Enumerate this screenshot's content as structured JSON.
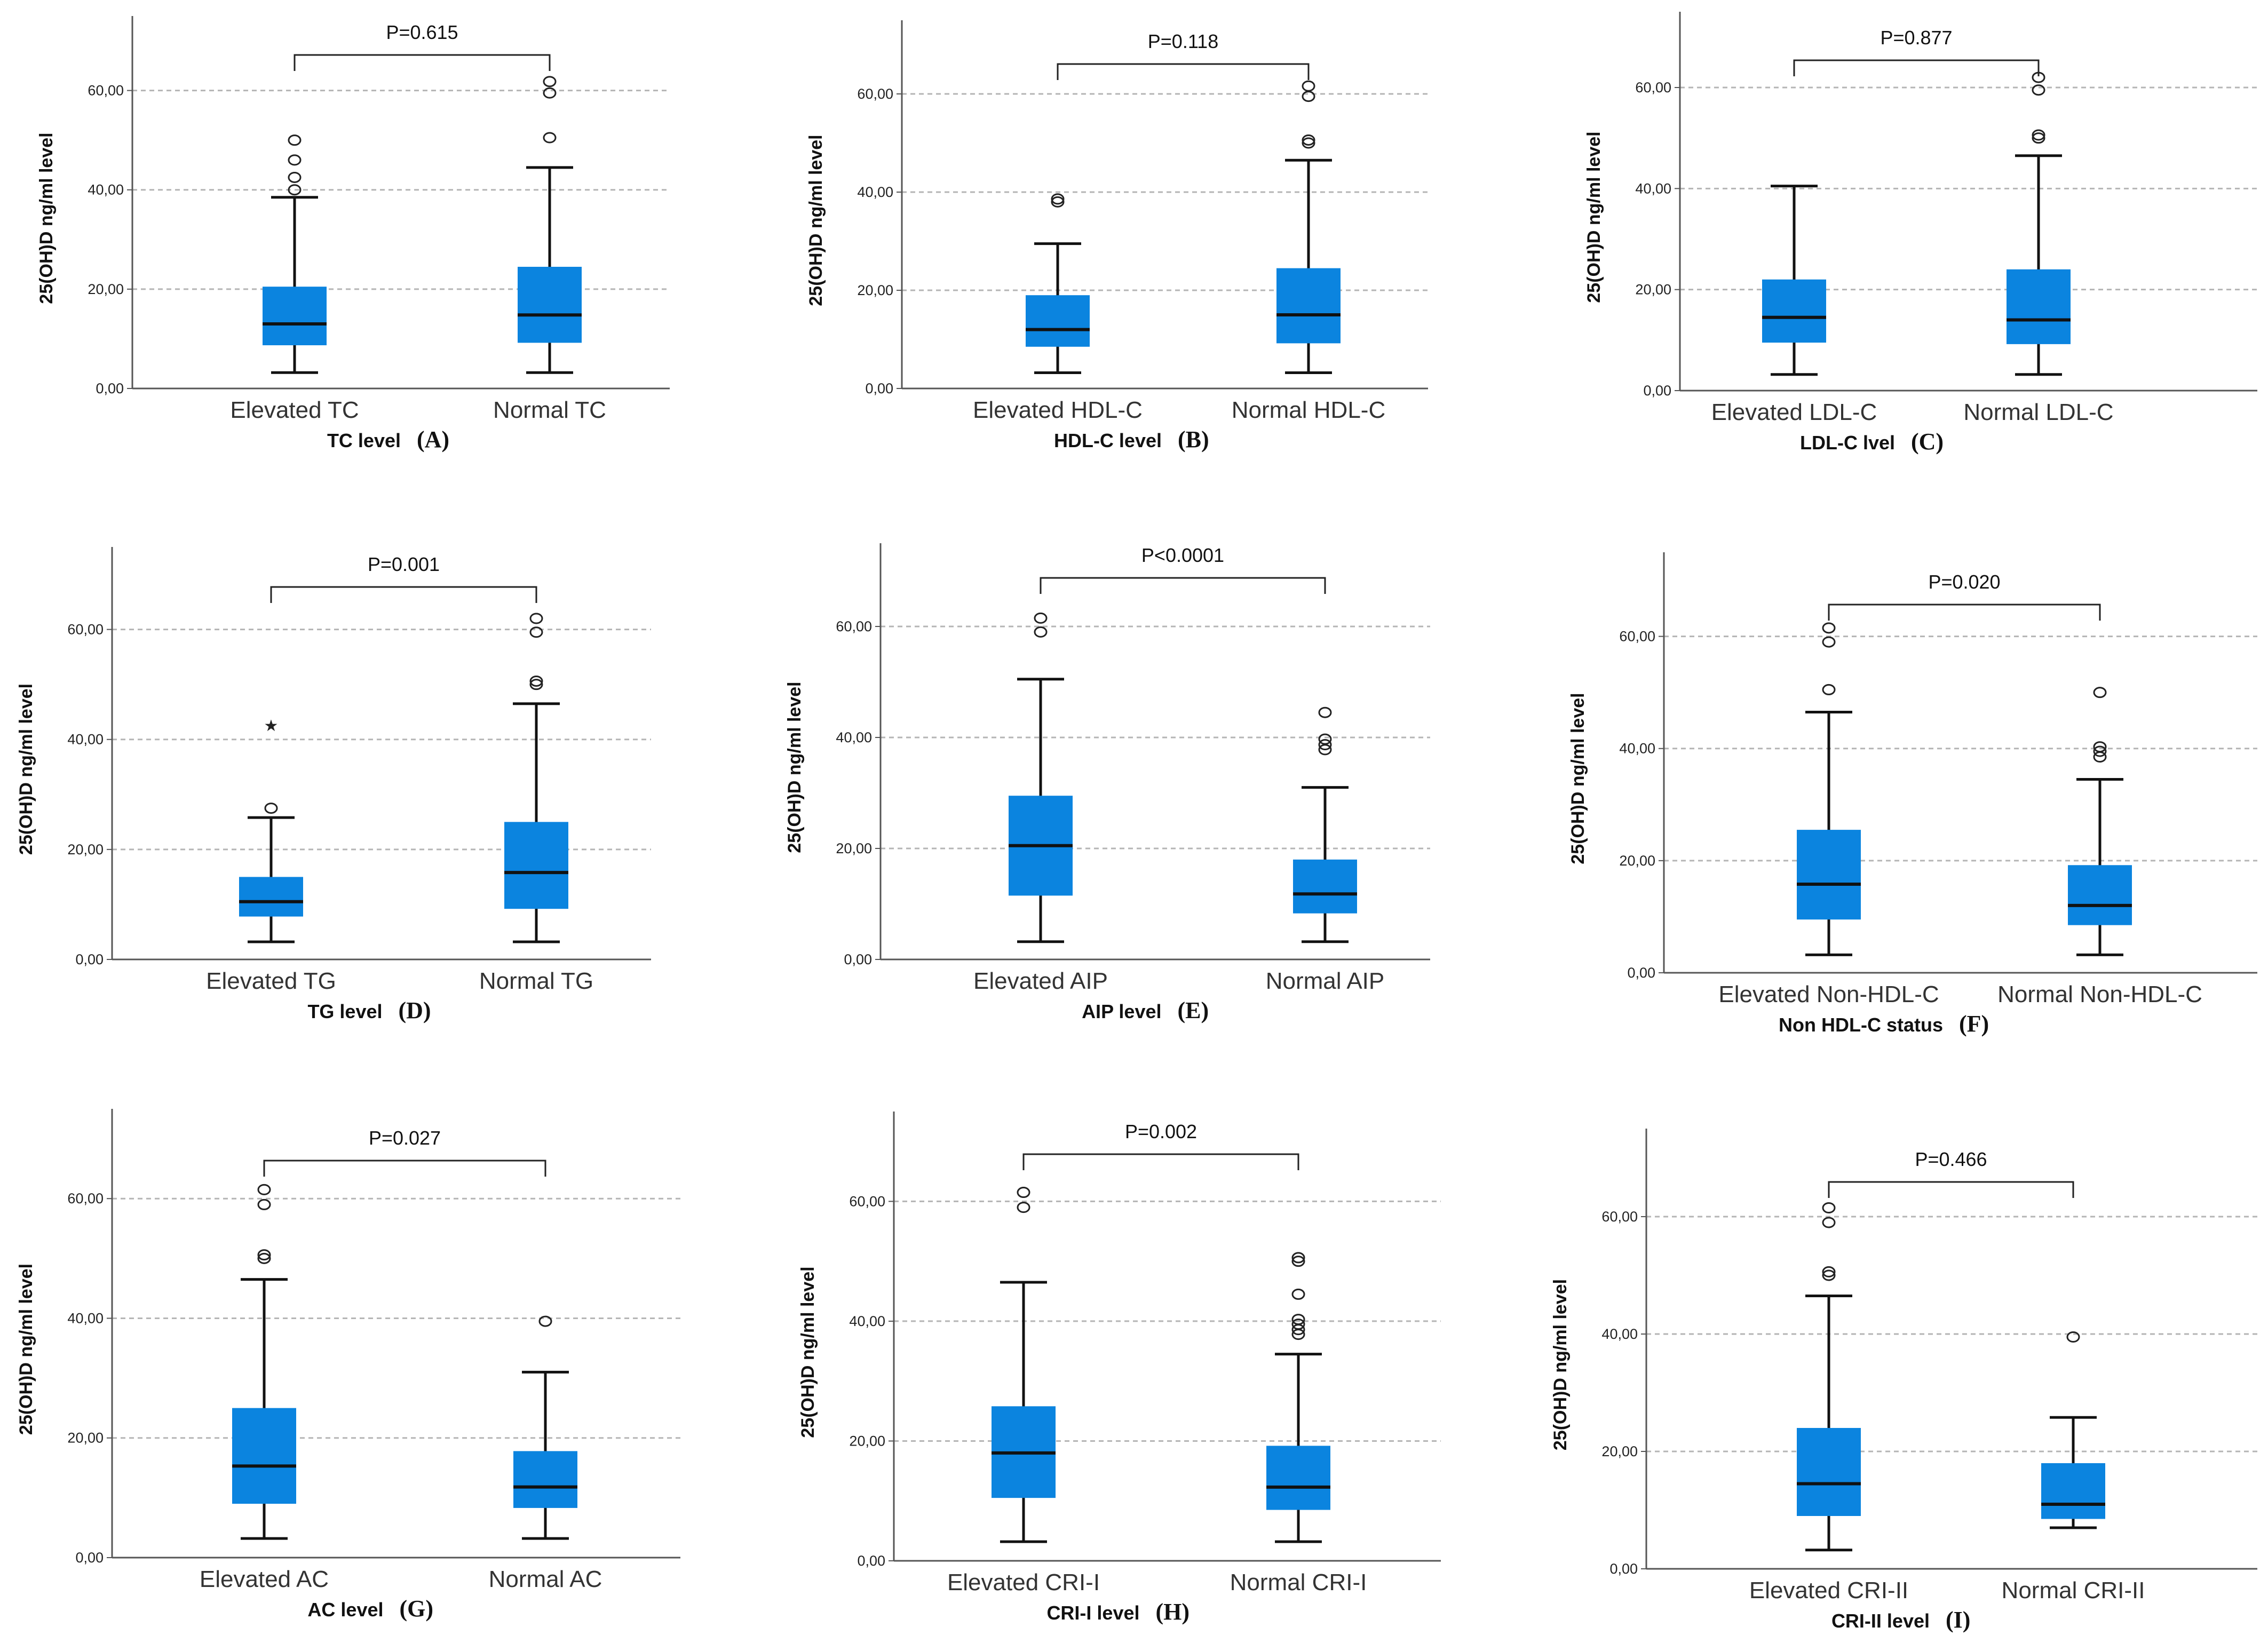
{
  "figure": {
    "ylabel": "25(OH)D ng/ml level",
    "ytick_labels": [
      "0,00",
      "20,00",
      "40,00",
      "60,00"
    ],
    "box_color": "#0b84df",
    "line_color": "#111111",
    "grid_color": "#b5b5b5"
  },
  "chart_data": [
    {
      "type": "box",
      "panel": "(A)",
      "xlabel": "TC level",
      "pvalue": "P=0.615",
      "ylim": [
        0,
        75
      ],
      "groups": [
        {
          "label": "Elevated  TC",
          "whisker_low": 3.2,
          "q1": 8.7,
          "median": 13.0,
          "q3": 20.5,
          "whisker_high": 38.5,
          "outliers": [
            {
              "value": 40.0,
              "symbol": "circle"
            },
            {
              "value": 42.5,
              "symbol": "circle"
            },
            {
              "value": 46.0,
              "symbol": "circle"
            },
            {
              "value": 50.0,
              "symbol": "circle"
            }
          ]
        },
        {
          "label": "Normal  TC",
          "whisker_low": 3.2,
          "q1": 9.2,
          "median": 14.8,
          "q3": 24.5,
          "whisker_high": 44.5,
          "outliers": [
            {
              "value": 50.5,
              "symbol": "circle"
            },
            {
              "value": 59.5,
              "symbol": "circle"
            },
            {
              "value": 61.8,
              "symbol": "circle"
            }
          ]
        }
      ]
    },
    {
      "type": "box",
      "panel": "(B)",
      "xlabel": "HDL-C level",
      "pvalue": "P=0.118",
      "ylim": [
        0,
        75
      ],
      "groups": [
        {
          "label": "Elevated HDL-C",
          "whisker_low": 3.2,
          "q1": 8.5,
          "median": 12.0,
          "q3": 19.0,
          "whisker_high": 29.5,
          "outliers": [
            {
              "value": 38.0,
              "symbol": "circle"
            },
            {
              "value": 38.6,
              "symbol": "circle"
            }
          ]
        },
        {
          "label": "Normal HDL-C",
          "whisker_low": 3.2,
          "q1": 9.2,
          "median": 15.0,
          "q3": 24.5,
          "whisker_high": 46.5,
          "outliers": [
            {
              "value": 50.0,
              "symbol": "circle"
            },
            {
              "value": 50.6,
              "symbol": "circle"
            },
            {
              "value": 59.5,
              "symbol": "circle"
            },
            {
              "value": 61.6,
              "symbol": "circle"
            }
          ]
        }
      ]
    },
    {
      "type": "box",
      "panel": "(C)",
      "xlabel": "LDL-C lvel",
      "pvalue": "P=0.877",
      "ylim": [
        0,
        75
      ],
      "groups": [
        {
          "label": "Elevated LDL-C",
          "whisker_low": 3.2,
          "q1": 9.5,
          "median": 14.5,
          "q3": 22.0,
          "whisker_high": 40.5,
          "outliers": []
        },
        {
          "label": "Normal LDL-C",
          "whisker_low": 3.2,
          "q1": 9.2,
          "median": 14.0,
          "q3": 24.0,
          "whisker_high": 46.5,
          "outliers": [
            {
              "value": 50.0,
              "symbol": "circle"
            },
            {
              "value": 50.6,
              "symbol": "circle"
            },
            {
              "value": 59.5,
              "symbol": "circle"
            },
            {
              "value": 62.0,
              "symbol": "circle"
            }
          ]
        }
      ]
    },
    {
      "type": "box",
      "panel": "(D)",
      "xlabel": "TG level",
      "pvalue": "P=0.001",
      "ylim": [
        0,
        75
      ],
      "groups": [
        {
          "label": "Elevated  TG",
          "whisker_low": 3.2,
          "q1": 7.8,
          "median": 10.5,
          "q3": 15.0,
          "whisker_high": 25.8,
          "outliers": [
            {
              "value": 27.5,
              "symbol": "circle"
            },
            {
              "value": 42.5,
              "symbol": "star"
            }
          ]
        },
        {
          "label": "Normal  TG",
          "whisker_low": 3.2,
          "q1": 9.2,
          "median": 15.8,
          "q3": 25.0,
          "whisker_high": 46.5,
          "outliers": [
            {
              "value": 50.0,
              "symbol": "circle"
            },
            {
              "value": 50.6,
              "symbol": "circle"
            },
            {
              "value": 59.5,
              "symbol": "circle"
            },
            {
              "value": 62.0,
              "symbol": "circle"
            }
          ]
        }
      ]
    },
    {
      "type": "box",
      "panel": "(E)",
      "xlabel": "AIP level",
      "pvalue": "P<0.0001",
      "ylim": [
        0,
        75
      ],
      "groups": [
        {
          "label": "Elevated AIP",
          "whisker_low": 3.2,
          "q1": 11.5,
          "median": 20.5,
          "q3": 29.5,
          "whisker_high": 50.5,
          "outliers": [
            {
              "value": 59.0,
              "symbol": "circle"
            },
            {
              "value": 61.5,
              "symbol": "circle"
            }
          ]
        },
        {
          "label": "Normal AIP",
          "whisker_low": 3.2,
          "q1": 8.3,
          "median": 11.8,
          "q3": 18.0,
          "whisker_high": 31.0,
          "outliers": [
            {
              "value": 37.8,
              "symbol": "circle"
            },
            {
              "value": 38.7,
              "symbol": "circle"
            },
            {
              "value": 39.7,
              "symbol": "circle"
            },
            {
              "value": 44.5,
              "symbol": "circle"
            }
          ]
        }
      ]
    },
    {
      "type": "box",
      "panel": "(F)",
      "xlabel": "Non HDL-C status",
      "pvalue": "P=0.020",
      "ylim": [
        0,
        75
      ],
      "groups": [
        {
          "label": "Elevated Non-HDL-C",
          "whisker_low": 3.2,
          "q1": 9.5,
          "median": 15.8,
          "q3": 25.5,
          "whisker_high": 46.5,
          "outliers": [
            {
              "value": 50.5,
              "symbol": "circle"
            },
            {
              "value": 59.0,
              "symbol": "circle"
            },
            {
              "value": 61.5,
              "symbol": "circle"
            }
          ]
        },
        {
          "label": "Normal Non-HDL-C",
          "whisker_low": 3.2,
          "q1": 8.5,
          "median": 12.0,
          "q3": 19.2,
          "whisker_high": 34.5,
          "outliers": [
            {
              "value": 38.5,
              "symbol": "circle"
            },
            {
              "value": 39.5,
              "symbol": "circle"
            },
            {
              "value": 40.3,
              "symbol": "circle"
            },
            {
              "value": 50.0,
              "symbol": "circle"
            }
          ]
        }
      ]
    },
    {
      "type": "box",
      "panel": "(G)",
      "xlabel": "AC level",
      "pvalue": "P=0.027",
      "ylim": [
        0,
        75
      ],
      "groups": [
        {
          "label": "Elevated  AC",
          "whisker_low": 3.2,
          "q1": 9.0,
          "median": 15.3,
          "q3": 25.0,
          "whisker_high": 46.5,
          "outliers": [
            {
              "value": 50.0,
              "symbol": "circle"
            },
            {
              "value": 50.6,
              "symbol": "circle"
            },
            {
              "value": 59.0,
              "symbol": "circle"
            },
            {
              "value": 61.5,
              "symbol": "circle"
            }
          ]
        },
        {
          "label": "Normal  AC",
          "whisker_low": 3.2,
          "q1": 8.3,
          "median": 11.8,
          "q3": 17.8,
          "whisker_high": 31.0,
          "outliers": [
            {
              "value": 39.5,
              "symbol": "circle"
            }
          ]
        }
      ]
    },
    {
      "type": "box",
      "panel": "(H)",
      "xlabel": "CRI-I level",
      "pvalue": "P=0.002",
      "ylim": [
        0,
        75
      ],
      "groups": [
        {
          "label": "Elevated CRI-I",
          "whisker_low": 3.2,
          "q1": 10.5,
          "median": 18.0,
          "q3": 25.8,
          "whisker_high": 46.5,
          "outliers": [
            {
              "value": 59.0,
              "symbol": "circle"
            },
            {
              "value": 61.5,
              "symbol": "circle"
            }
          ]
        },
        {
          "label": "Normal CRI-I",
          "whisker_low": 3.2,
          "q1": 8.5,
          "median": 12.3,
          "q3": 19.2,
          "whisker_high": 34.5,
          "outliers": [
            {
              "value": 37.8,
              "symbol": "circle"
            },
            {
              "value": 38.6,
              "symbol": "circle"
            },
            {
              "value": 39.5,
              "symbol": "circle"
            },
            {
              "value": 40.3,
              "symbol": "circle"
            },
            {
              "value": 44.5,
              "symbol": "circle"
            },
            {
              "value": 50.0,
              "symbol": "circle"
            },
            {
              "value": 50.6,
              "symbol": "circle"
            }
          ]
        }
      ]
    },
    {
      "type": "box",
      "panel": "(I)",
      "xlabel": "CRI-II level",
      "pvalue": "P=0.466",
      "ylim": [
        0,
        75
      ],
      "groups": [
        {
          "label": "Elevated CRI-II",
          "whisker_low": 3.2,
          "q1": 9.0,
          "median": 14.5,
          "q3": 24.0,
          "whisker_high": 46.5,
          "outliers": [
            {
              "value": 50.0,
              "symbol": "circle"
            },
            {
              "value": 50.6,
              "symbol": "circle"
            },
            {
              "value": 59.0,
              "symbol": "circle"
            },
            {
              "value": 61.5,
              "symbol": "circle"
            }
          ]
        },
        {
          "label": "Normal CRI-II",
          "whisker_low": 7.0,
          "q1": 8.5,
          "median": 11.0,
          "q3": 18.0,
          "whisker_high": 25.8,
          "outliers": [
            {
              "value": 39.5,
              "symbol": "circle"
            }
          ]
        }
      ]
    }
  ]
}
